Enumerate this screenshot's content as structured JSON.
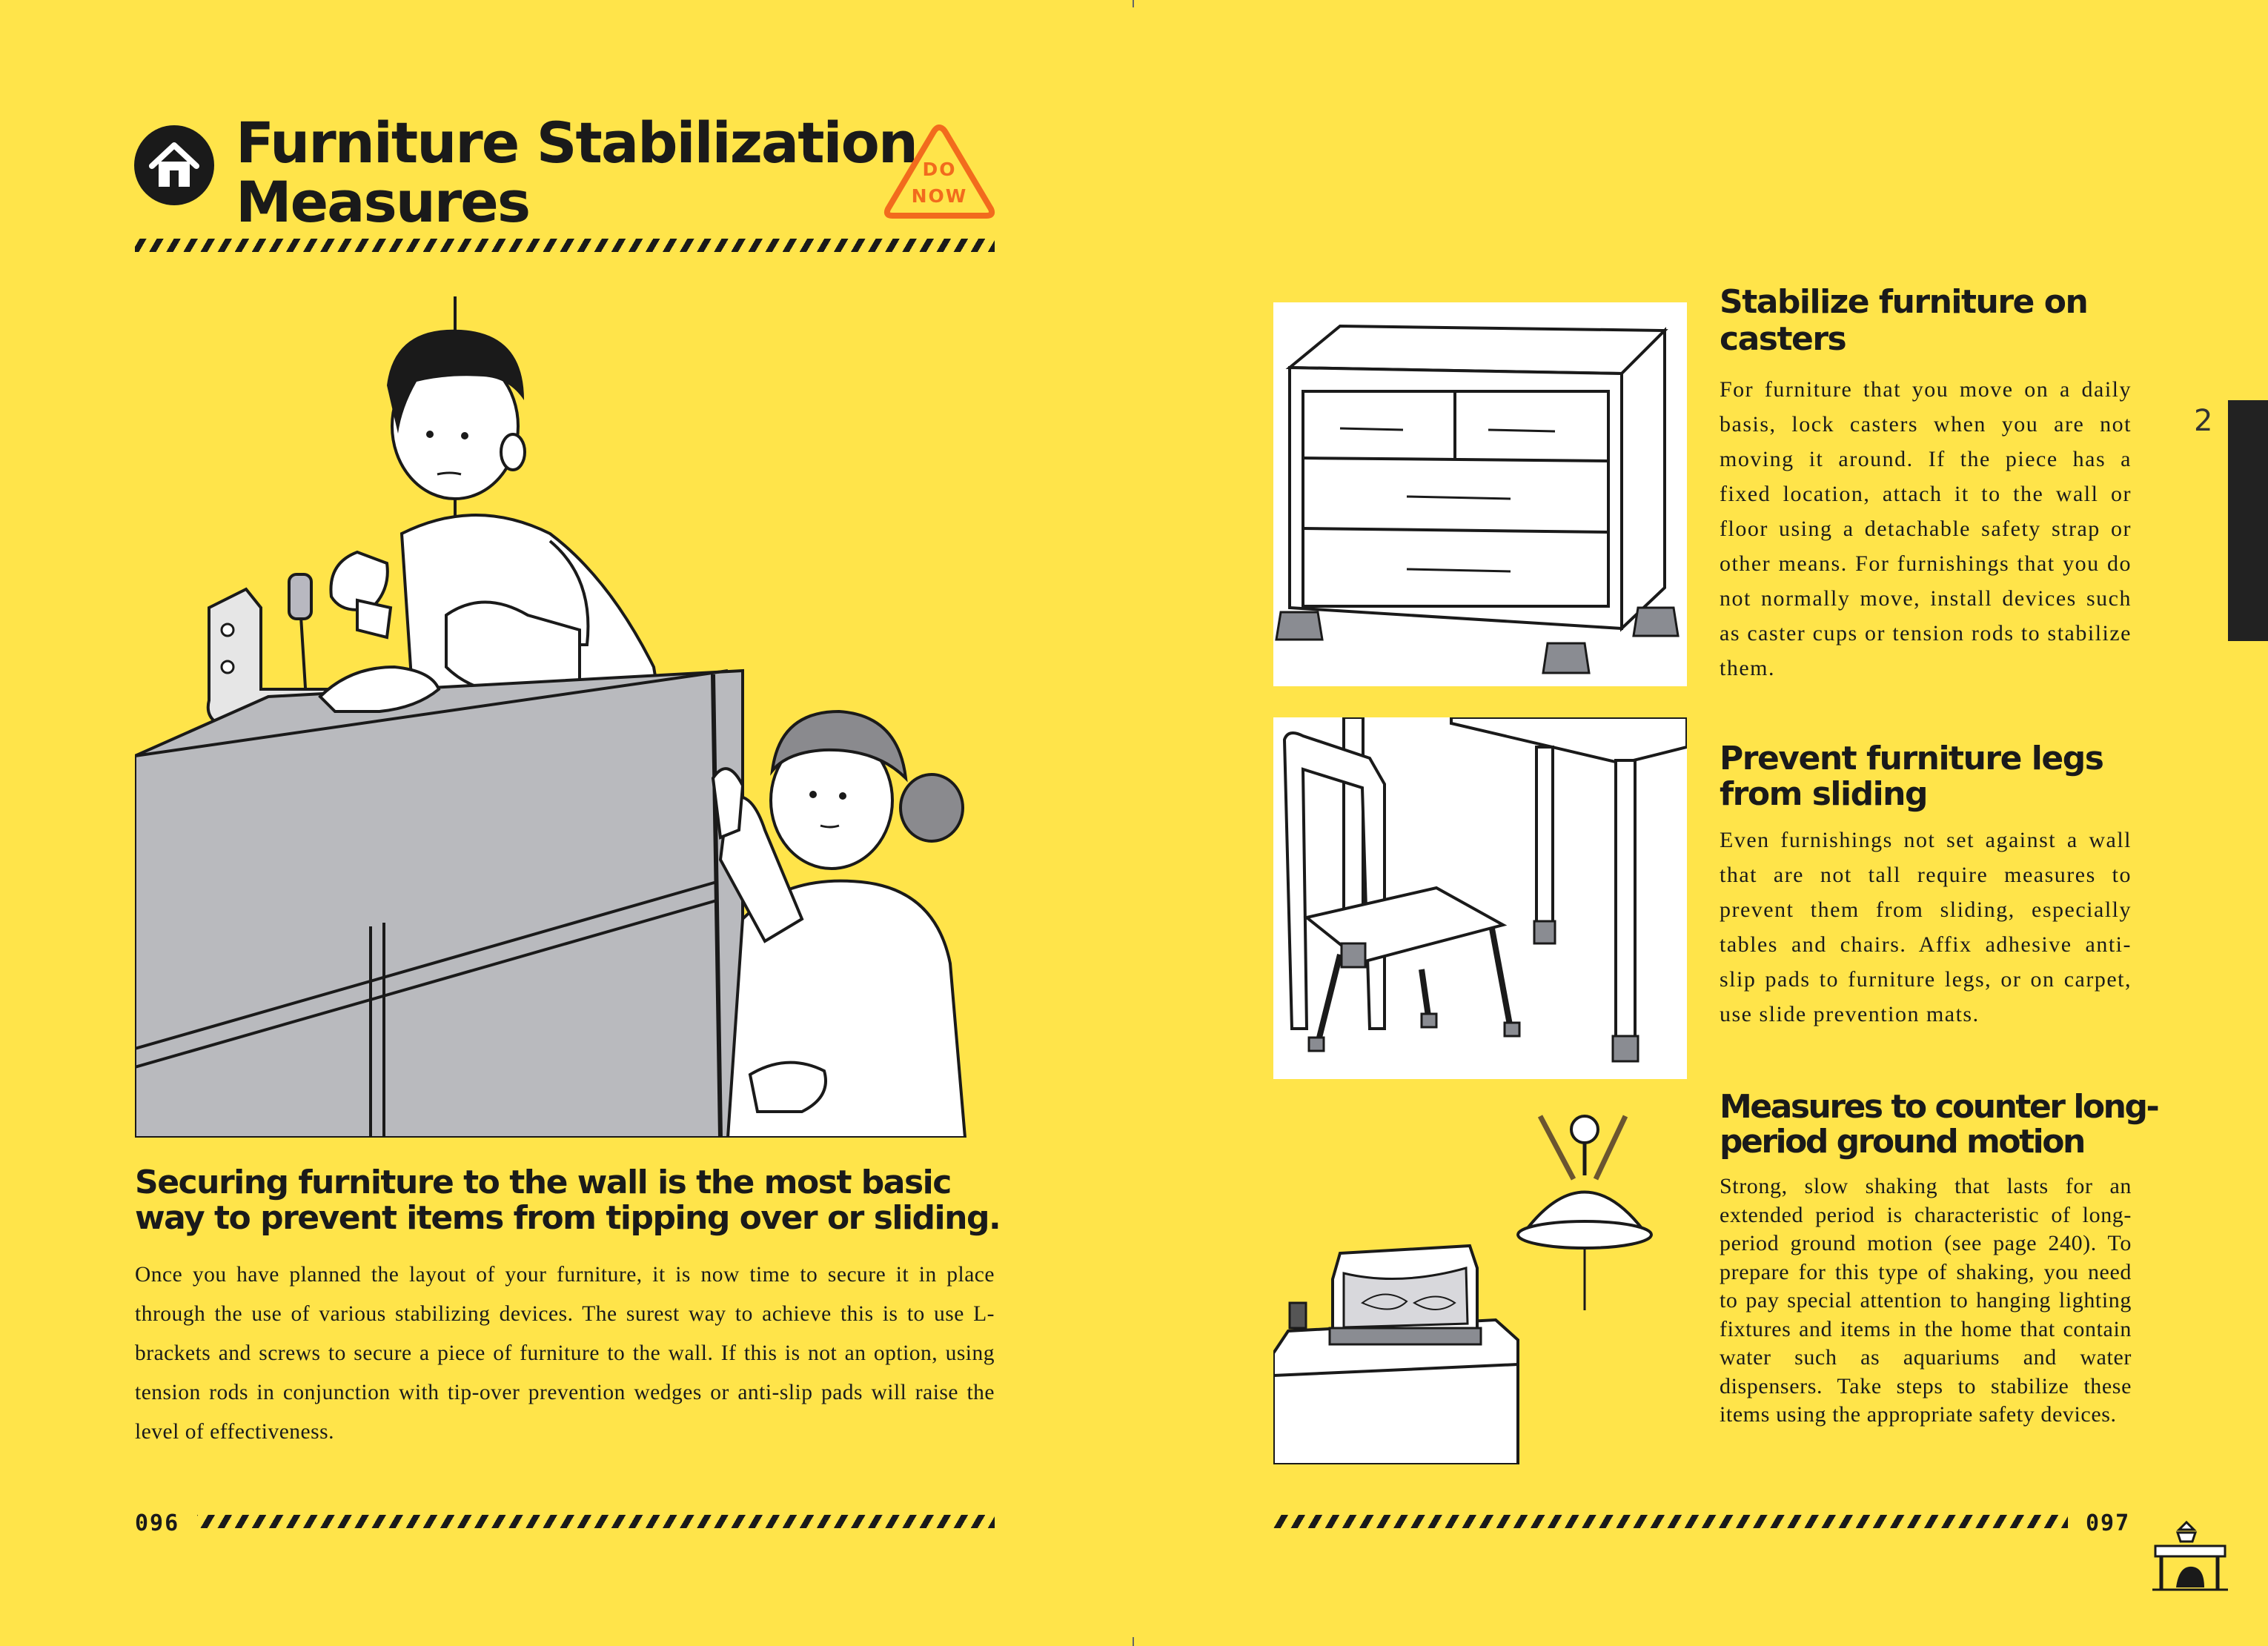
{
  "left": {
    "title_line1": "Furniture Stabilization",
    "title_line2": "Measures",
    "badge_line1": "DO",
    "badge_line2": "NOW",
    "subheading_line1": "Securing furniture to the wall is the most basic",
    "subheading_line2": "way to prevent items from tipping over or sliding.",
    "body": "Once you have planned the layout of your furniture, it is now time to secure it in place through the use of various stabilizing devices. The surest way to achieve this is to use L-brackets and screws to secure a piece of furniture to the wall. If this is not an option, using tension rods in conjunction with tip-over prevention wedges or anti-slip pads will raise the level of effectiveness.",
    "page_number": "096"
  },
  "right": {
    "sections": [
      {
        "title_line1": "Stabilize furniture on",
        "title_line2": "casters",
        "body": "For furniture that you move on a daily basis, lock casters when you are not moving it around. If the piece has a fixed location, attach it to the wall or floor using a detachable safety strap or other means. For furnishings that you do not normally move, install devices such as caster cups or tension rods to stabilize them."
      },
      {
        "title_line1": "Prevent furniture legs",
        "title_line2": "from sliding",
        "body": "Even furnishings not set against a wall that are not tall require measures to prevent them from sliding, especially tables and chairs. Affix adhesive anti-slip pads to furniture legs, or on carpet, use slide prevention mats."
      },
      {
        "title_line1": "Measures to counter long-",
        "title_line2": "period ground motion",
        "body": "Strong, slow shaking that lasts for an extended period is characteristic of long-period ground motion (see page 240). To prepare for this type of shaking, you need to pay special attention to hanging lighting fixtures and items in the home that contain water such as aquariums and water dispensers. Take steps to stabilize these items using the appropriate safety devices."
      }
    ],
    "chapter_tab": "2",
    "page_number": "097"
  },
  "colors": {
    "page_background": "#FFE44A",
    "ink": "#1a1a1a",
    "badge_orange": "#F26B1D",
    "chapter_tab": "#222222"
  },
  "icons": [
    "house-icon",
    "do-now-warning-icon",
    "table-shelter-icon"
  ]
}
